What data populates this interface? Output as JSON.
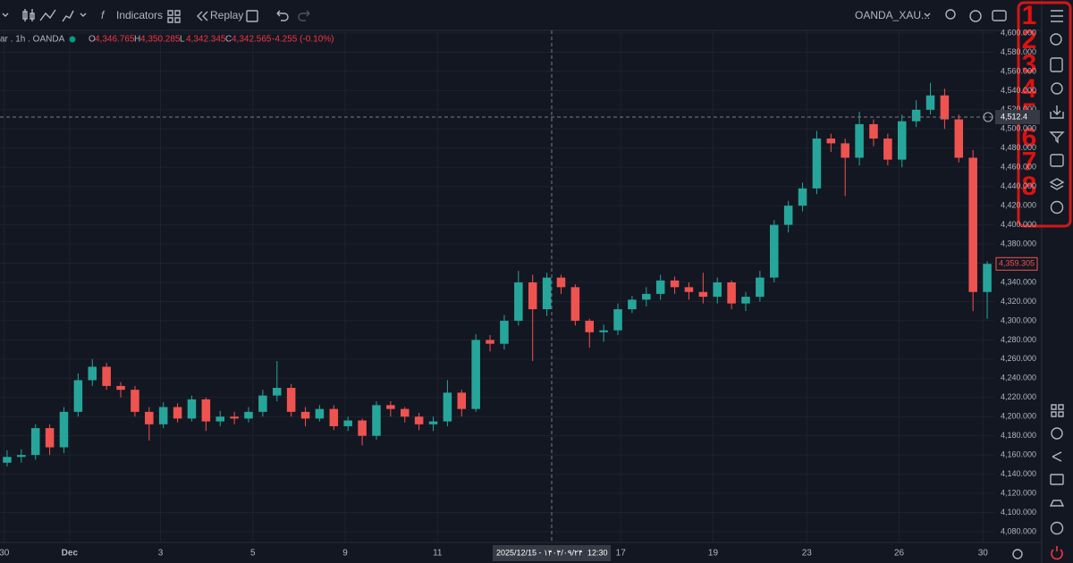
{
  "toolbar": {
    "indicators": "Indicators",
    "replay": "Replay",
    "symbol": "OANDA_XAU..."
  },
  "legend": {
    "title": "ar . 1h . OANDA",
    "items": [
      {
        "label": "O",
        "value": "4,346.765"
      },
      {
        "label": "H",
        "value": "4,350.285"
      },
      {
        "label": "L",
        "value": "4,342.345"
      },
      {
        "label": "C",
        "value": "4,342.565"
      }
    ],
    "change": "-4.255 (-0.10%)"
  },
  "annotations": [
    "1",
    "2",
    "3",
    "4",
    "5",
    "6",
    "7",
    "8"
  ],
  "chart_data": {
    "type": "candlestick",
    "up_color": "#26a69a",
    "down_color": "#ef5350",
    "grid": true,
    "open": [
      4152,
      4158,
      4160,
      4188,
      4168,
      4205,
      4238,
      4252,
      4232,
      4228,
      4205,
      4192,
      4210,
      4198,
      4218,
      4195,
      4200,
      4198,
      4205,
      4222,
      4230,
      4205,
      4198,
      4208,
      4190,
      4196,
      4180,
      4212,
      4208,
      4200,
      4192,
      4195,
      4225,
      4208,
      4280,
      4276,
      4300,
      4340,
      4312,
      4345,
      4335,
      4300,
      4288,
      4290,
      4312,
      4322,
      4328,
      4342,
      4335,
      4330,
      4325,
      4340,
      4318,
      4325,
      4345,
      4400,
      4420,
      4438,
      4490,
      4485,
      4470,
      4505,
      4490,
      4468,
      4508,
      4520,
      4535,
      4510,
      4470,
      4330
    ],
    "high": [
      4165,
      4166,
      4192,
      4192,
      4210,
      4245,
      4260,
      4256,
      4236,
      4232,
      4210,
      4215,
      4214,
      4222,
      4220,
      4206,
      4205,
      4210,
      4228,
      4258,
      4234,
      4210,
      4212,
      4212,
      4200,
      4198,
      4216,
      4216,
      4210,
      4204,
      4200,
      4238,
      4228,
      4286,
      4285,
      4306,
      4352,
      4348,
      4350,
      4348,
      4338,
      4302,
      4296,
      4318,
      4326,
      4335,
      4348,
      4346,
      4340,
      4350,
      4345,
      4342,
      4330,
      4352,
      4405,
      4425,
      4444,
      4498,
      4495,
      4490,
      4518,
      4510,
      4495,
      4515,
      4530,
      4548,
      4542,
      4515,
      4478,
      4362
    ],
    "low": [
      4148,
      4152,
      4155,
      4160,
      4162,
      4200,
      4232,
      4228,
      4220,
      4200,
      4175,
      4188,
      4194,
      4195,
      4185,
      4190,
      4192,
      4194,
      4200,
      4216,
      4200,
      4190,
      4195,
      4186,
      4185,
      4170,
      4176,
      4200,
      4194,
      4186,
      4185,
      4190,
      4200,
      4205,
      4268,
      4270,
      4295,
      4258,
      4305,
      4328,
      4295,
      4272,
      4278,
      4285,
      4308,
      4315,
      4322,
      4328,
      4322,
      4318,
      4318,
      4312,
      4310,
      4320,
      4340,
      4392,
      4414,
      4432,
      4476,
      4430,
      4462,
      4482,
      4462,
      4460,
      4502,
      4515,
      4500,
      4465,
      4310,
      4302
    ],
    "close": [
      4158,
      4160,
      4188,
      4168,
      4205,
      4238,
      4252,
      4232,
      4228,
      4205,
      4192,
      4210,
      4198,
      4218,
      4195,
      4200,
      4198,
      4205,
      4222,
      4230,
      4205,
      4198,
      4208,
      4190,
      4196,
      4180,
      4212,
      4208,
      4200,
      4192,
      4195,
      4225,
      4208,
      4280,
      4276,
      4300,
      4340,
      4312,
      4345,
      4335,
      4300,
      4288,
      4290,
      4312,
      4322,
      4328,
      4342,
      4335,
      4330,
      4325,
      4340,
      4318,
      4325,
      4345,
      4400,
      4420,
      4438,
      4490,
      4485,
      4470,
      4505,
      4490,
      4468,
      4508,
      4520,
      4535,
      4510,
      4470,
      4330,
      4359.305
    ],
    "last_price_label": "4,359.305",
    "crosshair": {
      "price": 4512.4,
      "price_label": "4,512.4",
      "time_label": "2025/12/15 - ۱۴۰۴/۰۹/۲۴",
      "time": "12:30"
    },
    "xlim": [
      0,
      70
    ],
    "xticks": [
      {
        "value": 0.3,
        "label": "30"
      },
      {
        "value": 4.9,
        "label": "Dec"
      },
      {
        "value": 11.3,
        "label": "3"
      },
      {
        "value": 17.8,
        "label": "5"
      },
      {
        "value": 24.3,
        "label": "9"
      },
      {
        "value": 30.8,
        "label": "11"
      },
      {
        "value": 43.7,
        "label": "17"
      },
      {
        "value": 50.2,
        "label": "19"
      },
      {
        "value": 56.8,
        "label": "23"
      },
      {
        "value": 63.3,
        "label": "26"
      },
      {
        "value": 69.2,
        "label": "30"
      }
    ],
    "ylim": [
      4068.8,
      4602.8
    ],
    "yticks": [
      {
        "value": 4080,
        "label": "4,080.000"
      },
      {
        "value": 4100,
        "label": "4,100.000"
      },
      {
        "value": 4120,
        "label": "4,120.000"
      },
      {
        "value": 4140,
        "label": "4,140.000"
      },
      {
        "value": 4160,
        "label": "4,160.000"
      },
      {
        "value": 4180,
        "label": "4,180.000"
      },
      {
        "value": 4200,
        "label": "4,200.000"
      },
      {
        "value": 4220,
        "label": "4,220.000"
      },
      {
        "value": 4240,
        "label": "4,240.000"
      },
      {
        "value": 4260,
        "label": "4,260.000"
      },
      {
        "value": 4280,
        "label": "4,280.000"
      },
      {
        "value": 4300,
        "label": "4,300.000"
      },
      {
        "value": 4320,
        "label": "4,320.000"
      },
      {
        "value": 4340,
        "label": "4,340.000"
      },
      {
        "value": 4360,
        "label": "4,360.000"
      },
      {
        "value": 4380,
        "label": "4,380.000"
      },
      {
        "value": 4400,
        "label": "4,400.000"
      },
      {
        "value": 4420,
        "label": "4,420.000"
      },
      {
        "value": 4440,
        "label": "4,440.000"
      },
      {
        "value": 4460,
        "label": "4,460.000"
      },
      {
        "value": 4480,
        "label": "4,480.000"
      },
      {
        "value": 4500,
        "label": "4,500.000"
      },
      {
        "value": 4520,
        "label": "4,520.000"
      },
      {
        "value": 4540,
        "label": "4,540.000"
      },
      {
        "value": 4560,
        "label": "4,560.000"
      },
      {
        "value": 4580,
        "label": "4,580.000"
      },
      {
        "value": 4600,
        "label": "4,600.000"
      }
    ]
  }
}
